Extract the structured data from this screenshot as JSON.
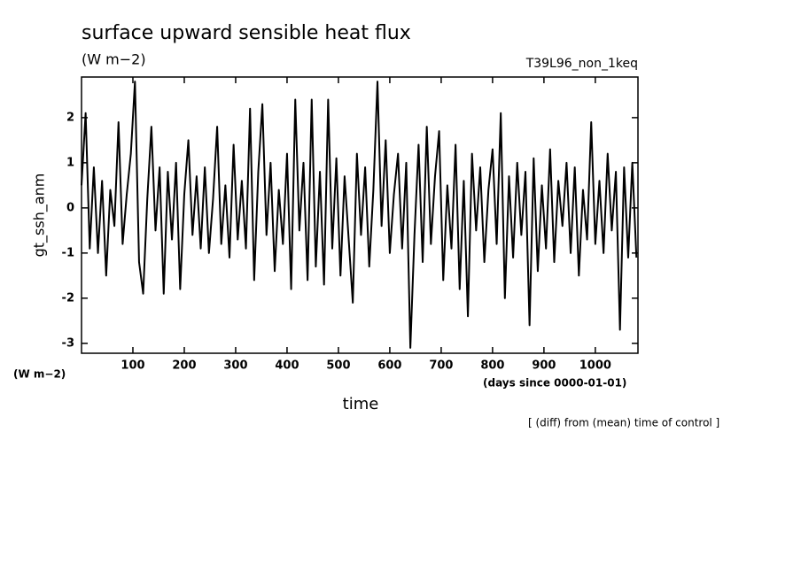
{
  "chart_data": {
    "type": "line",
    "title": "surface upward sensible heat flux",
    "units": "(W m−2)",
    "run_label": "T39L96_non_1keq",
    "y_label": "gt_ssh_anm",
    "y_units": "(W m−2)",
    "x_units": "(days since 0000-01-01)",
    "x_label": "time",
    "note": "[ (diff) from (mean) time of control ]",
    "xlim": [
      0,
      1083
    ],
    "ylim": [
      -3.22,
      2.9
    ],
    "xticks": [
      100,
      200,
      300,
      400,
      500,
      600,
      700,
      800,
      900,
      1000
    ],
    "yticks": [
      -3,
      -2,
      -1,
      0,
      1,
      2
    ],
    "x": [
      0,
      8,
      16,
      24,
      32,
      40,
      48,
      56,
      64,
      72,
      80,
      88,
      96,
      104,
      112,
      120,
      128,
      136,
      144,
      152,
      160,
      168,
      176,
      184,
      192,
      200,
      208,
      216,
      224,
      232,
      240,
      248,
      256,
      264,
      272,
      280,
      288,
      296,
      304,
      312,
      320,
      328,
      336,
      344,
      352,
      360,
      368,
      376,
      384,
      392,
      400,
      408,
      416,
      424,
      432,
      440,
      448,
      456,
      464,
      472,
      480,
      488,
      496,
      504,
      512,
      520,
      528,
      536,
      544,
      552,
      560,
      568,
      576,
      584,
      592,
      600,
      608,
      616,
      624,
      632,
      640,
      648,
      656,
      664,
      672,
      680,
      688,
      696,
      704,
      712,
      720,
      728,
      736,
      744,
      752,
      760,
      768,
      776,
      784,
      792,
      800,
      808,
      816,
      824,
      832,
      840,
      848,
      856,
      864,
      872,
      880,
      888,
      896,
      904,
      912,
      920,
      928,
      936,
      944,
      952,
      960,
      968,
      976,
      984,
      992,
      1000,
      1008,
      1016,
      1024,
      1032,
      1040,
      1048,
      1056,
      1064,
      1072,
      1080
    ],
    "series": [
      {
        "color": "#000000",
        "values": [
          0.5,
          2.1,
          -0.9,
          0.9,
          -1.0,
          0.6,
          -1.5,
          0.4,
          -0.4,
          1.9,
          -0.8,
          0.3,
          1.2,
          2.8,
          -1.2,
          -1.9,
          0.2,
          1.8,
          -0.5,
          0.9,
          -1.9,
          0.8,
          -0.7,
          1.0,
          -1.8,
          0.3,
          1.5,
          -0.6,
          0.7,
          -0.9,
          0.9,
          -1.0,
          0.2,
          1.8,
          -0.8,
          0.5,
          -1.1,
          1.4,
          -0.7,
          0.6,
          -0.9,
          2.2,
          -1.6,
          0.8,
          2.3,
          -0.6,
          1.0,
          -1.4,
          0.4,
          -0.8,
          1.2,
          -1.8,
          2.4,
          -0.5,
          1.0,
          -1.6,
          2.4,
          -1.3,
          0.8,
          -1.7,
          2.4,
          -0.9,
          1.1,
          -1.5,
          0.7,
          -0.7,
          -2.1,
          1.2,
          -0.6,
          0.9,
          -1.3,
          0.4,
          2.8,
          -0.4,
          1.5,
          -1.0,
          0.3,
          1.2,
          -0.9,
          1.0,
          -3.1,
          -0.6,
          1.4,
          -1.2,
          1.8,
          -0.8,
          0.7,
          1.7,
          -1.6,
          0.5,
          -0.9,
          1.4,
          -1.8,
          0.6,
          -2.4,
          1.2,
          -0.5,
          0.9,
          -1.2,
          0.4,
          1.3,
          -0.8,
          2.1,
          -2.0,
          0.7,
          -1.1,
          1.0,
          -0.6,
          0.8,
          -2.6,
          1.1,
          -1.4,
          0.5,
          -0.9,
          1.3,
          -1.2,
          0.6,
          -0.4,
          1.0,
          -1.0,
          0.9,
          -1.5,
          0.4,
          -0.7,
          1.9,
          -0.8,
          0.6,
          -1.0,
          1.2,
          -0.5,
          0.8,
          -2.7,
          0.9,
          -1.1,
          1.0,
          -1.1
        ]
      }
    ]
  }
}
